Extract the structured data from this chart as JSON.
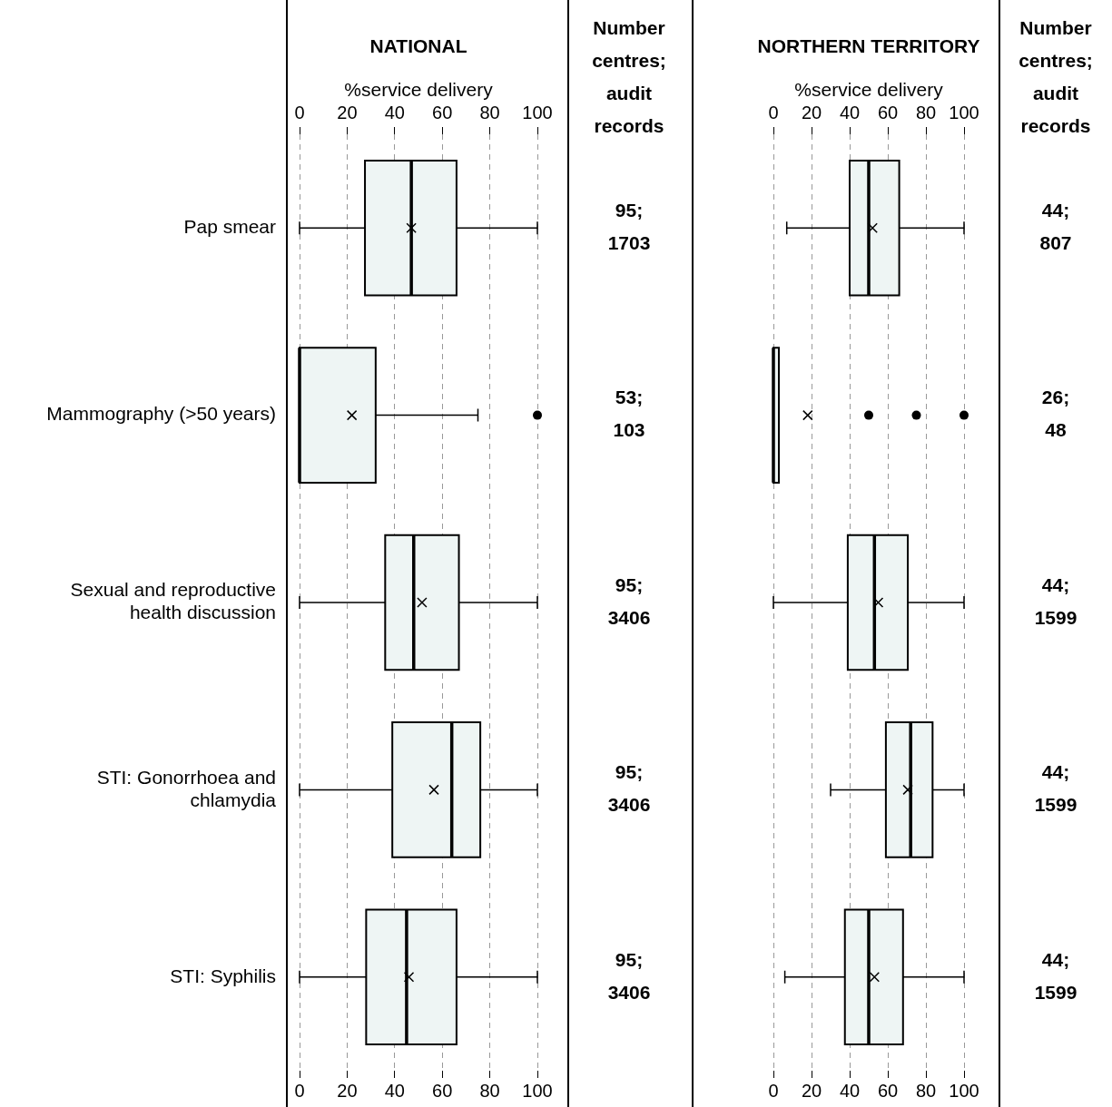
{
  "chart_data": [
    {
      "type": "box",
      "orientation": "horizontal",
      "title": "NATIONAL",
      "xlabel": "%service delivery",
      "categories": [
        "Pap smear",
        "Mammography (>50 years)",
        "Sexual and reproductive health discussion",
        "STI: Gonorrhoea and chlamydia",
        "STI: Syphilis"
      ],
      "xlim": [
        0,
        100
      ],
      "xticks": [
        0,
        20,
        40,
        60,
        80,
        100
      ],
      "x2lim": [
        0,
        100
      ],
      "x2ticks": [
        0,
        20,
        40,
        60,
        80,
        100
      ],
      "grid": "x",
      "legend": false,
      "series": [
        {
          "color": "#eef5f4",
          "boxes": [
            {
              "low": 0,
              "q1": 27.5,
              "median": 47,
              "q3": 66,
              "high": 100,
              "mean": 47
            },
            {
              "low": 0,
              "q1": 0,
              "median": 0,
              "q3": 32,
              "high": 75,
              "mean": 22,
              "outliers": [
                100
              ]
            },
            {
              "low": 0,
              "q1": 36,
              "median": 48,
              "q3": 67,
              "high": 100,
              "mean": 51.5
            },
            {
              "low": 0,
              "q1": 39,
              "median": 64,
              "q3": 76,
              "high": 100,
              "mean": 56.5
            },
            {
              "low": 0,
              "q1": 28,
              "median": 45,
              "q3": 66,
              "high": 100,
              "mean": 46
            }
          ]
        }
      ],
      "annotations": [
        "Number centres; audit records",
        "95; 1703",
        "53; 103",
        "95; 3406",
        "95; 3406",
        "95; 3406"
      ]
    },
    {
      "type": "box",
      "orientation": "horizontal",
      "title": "NORTHERN TERRITORY",
      "xlabel": "%service delivery",
      "categories": [
        null,
        null,
        null,
        null,
        null
      ],
      "xlim": [
        0,
        100
      ],
      "xticks": [
        0,
        20,
        40,
        60,
        80,
        100
      ],
      "x2lim": [
        0,
        100
      ],
      "x2ticks": [
        0,
        20,
        40,
        60,
        80,
        100
      ],
      "grid": "x",
      "legend": false,
      "series": [
        {
          "color": "#eef5f4",
          "boxes": [
            {
              "low": 7,
              "q1": 40,
              "median": 50,
              "q3": 66,
              "high": 100,
              "mean": 52
            },
            {
              "low": 0,
              "q1": 0,
              "median": 0,
              "q3": 0,
              "high": 0,
              "mean": 18,
              "outliers": [
                50,
                75,
                100
              ]
            },
            {
              "low": 0,
              "q1": 39,
              "median": 53,
              "q3": 70.5,
              "high": 100,
              "mean": 55
            },
            {
              "low": 30,
              "q1": 59,
              "median": 72,
              "q3": 83.5,
              "high": 100,
              "mean": 70.5
            },
            {
              "low": 6,
              "q1": 37.5,
              "median": 50,
              "q3": 68,
              "high": 100,
              "mean": 53
            }
          ]
        }
      ],
      "annotations": [
        "Number centres; audit records",
        "44; 807",
        "26; 48",
        "44; 1599",
        "44; 1599",
        "44; 1599"
      ]
    }
  ]
}
